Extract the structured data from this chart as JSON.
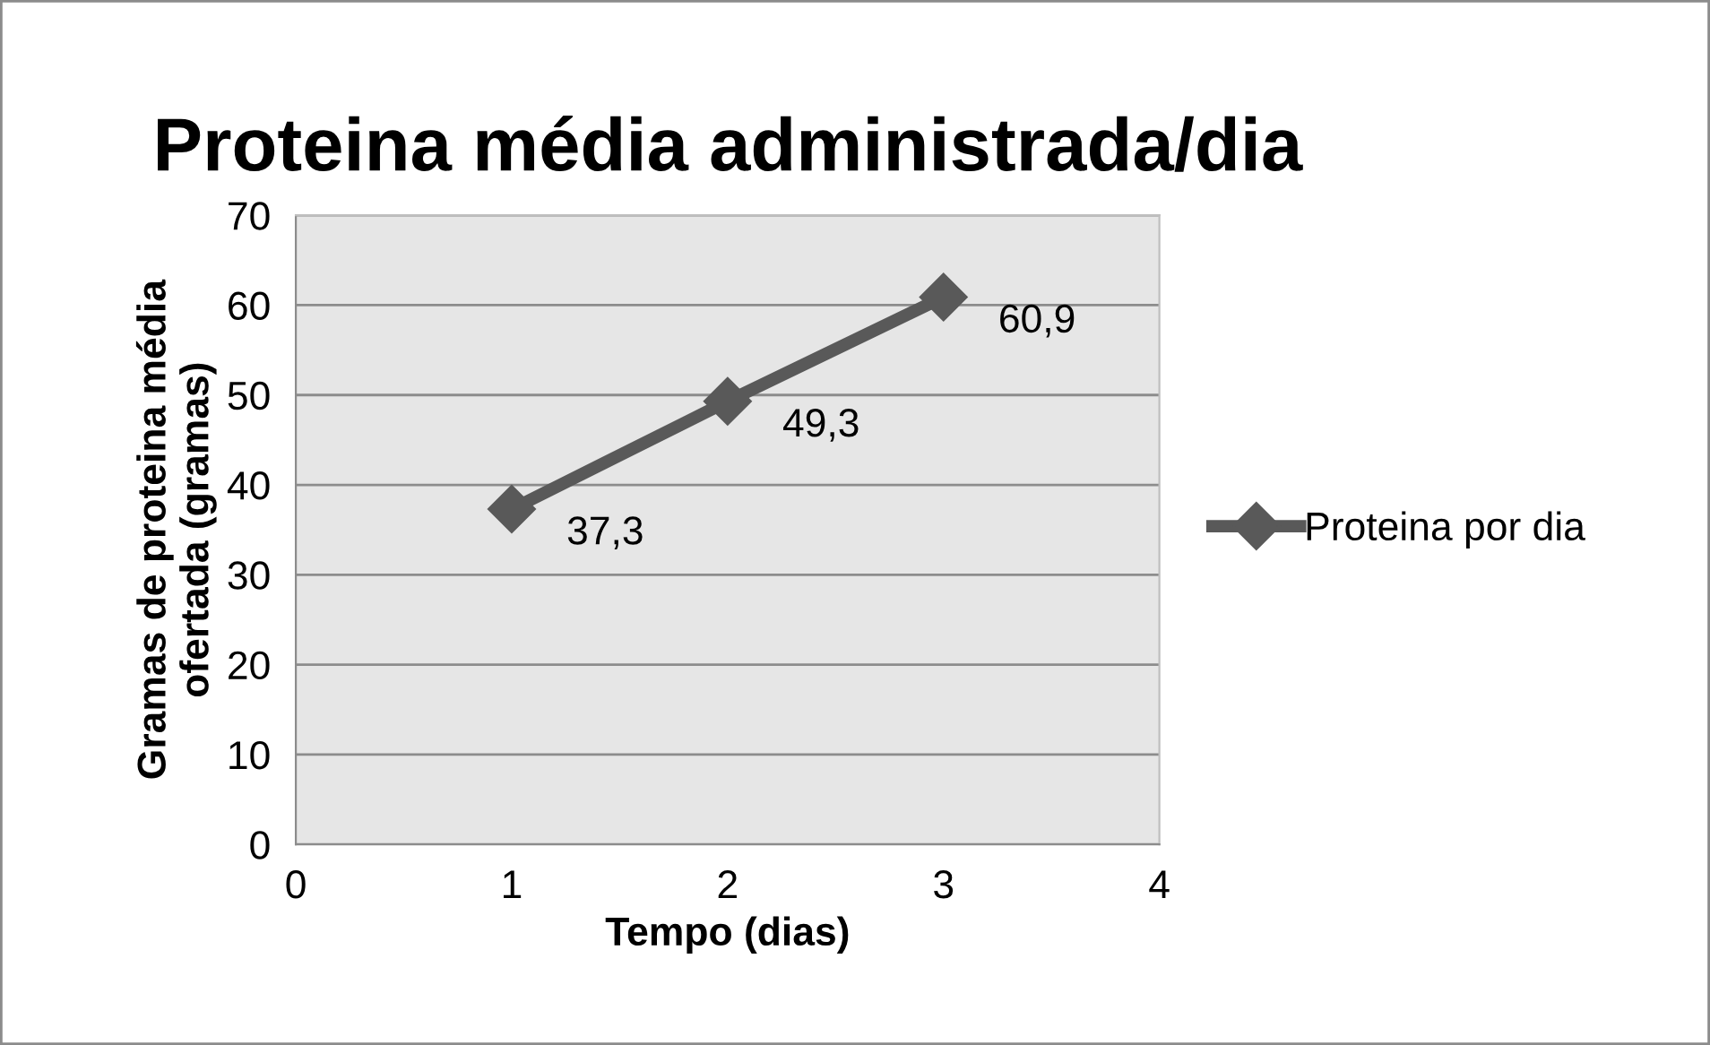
{
  "chart_data": {
    "type": "line",
    "title": "Proteina média administrada/dia",
    "xlabel": "Tempo (dias)",
    "ylabel": "Gramas de proteina média\nofertada (gramas)",
    "x": [
      1,
      2,
      3
    ],
    "series": [
      {
        "name": "Proteina por dia",
        "color": "#595959",
        "values": [
          37.3,
          49.3,
          60.9
        ],
        "value_labels": [
          "37,3",
          "49,3",
          "60,9"
        ]
      }
    ],
    "xlim": [
      0,
      4
    ],
    "xticks": [
      0,
      1,
      2,
      3,
      4
    ],
    "ylim": [
      0,
      70
    ],
    "yticks": [
      0,
      10,
      20,
      30,
      40,
      50,
      60,
      70
    ],
    "grid": "y",
    "legend": "right",
    "marker": "diamond",
    "line_style": "solid"
  }
}
